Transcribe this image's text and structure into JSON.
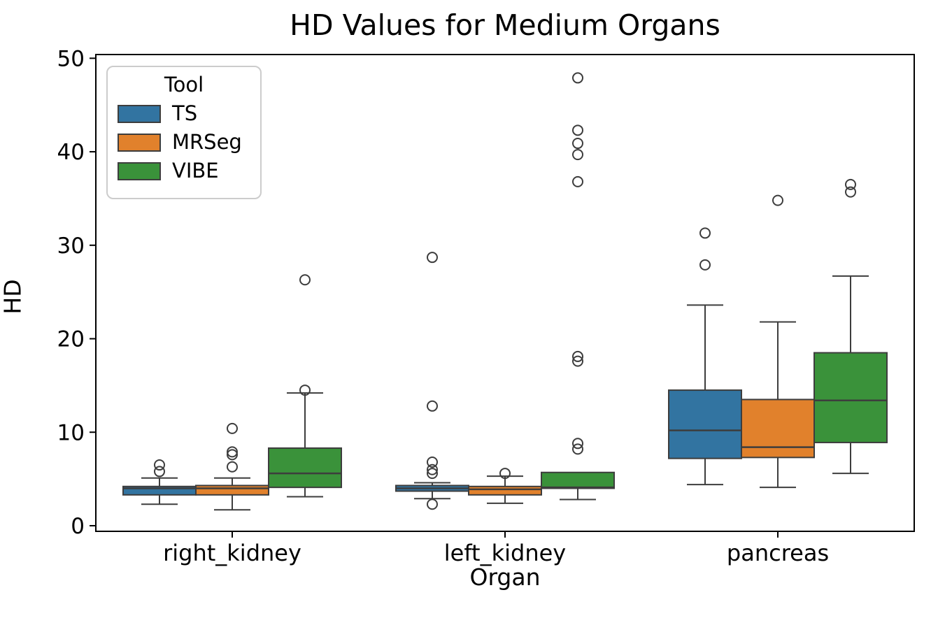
{
  "chart_data": {
    "type": "boxplot",
    "title": "HD Values for Medium Organs",
    "xlabel": "Organ",
    "ylabel": "HD",
    "legend_title": "Tool",
    "legend_position": "upper left",
    "grid": false,
    "ylim": [
      -0.6,
      50.4
    ],
    "yticks": [
      0,
      10,
      20,
      30,
      40,
      50
    ],
    "categories": [
      "right_kidney",
      "left_kidney",
      "pancreas"
    ],
    "series": [
      {
        "name": "TS",
        "color": "#3274a1",
        "boxes": [
          {
            "whislo": 2.3,
            "q1": 3.3,
            "med": 4.0,
            "q3": 4.2,
            "whishi": 5.1,
            "fliers": [
              5.8,
              6.5
            ]
          },
          {
            "whislo": 2.9,
            "q1": 3.7,
            "med": 4.0,
            "q3": 4.3,
            "whishi": 4.6,
            "fliers": [
              2.3,
              5.6,
              6.0,
              6.8,
              12.8,
              28.7
            ]
          },
          {
            "whislo": 4.4,
            "q1": 7.2,
            "med": 10.2,
            "q3": 14.5,
            "whishi": 23.6,
            "fliers": [
              27.9,
              31.3
            ]
          }
        ]
      },
      {
        "name": "MRSeg",
        "color": "#e1812c",
        "boxes": [
          {
            "whislo": 1.7,
            "q1": 3.3,
            "med": 4.0,
            "q3": 4.3,
            "whishi": 5.1,
            "fliers": [
              6.3,
              7.6,
              7.9,
              10.4
            ]
          },
          {
            "whislo": 2.4,
            "q1": 3.3,
            "med": 3.9,
            "q3": 4.2,
            "whishi": 5.3,
            "fliers": [
              5.6
            ]
          },
          {
            "whislo": 4.1,
            "q1": 7.3,
            "med": 8.4,
            "q3": 13.5,
            "whishi": 21.8,
            "fliers": [
              34.8
            ]
          }
        ]
      },
      {
        "name": "VIBE",
        "color": "#3a923a",
        "boxes": [
          {
            "whislo": 3.1,
            "q1": 4.1,
            "med": 5.6,
            "q3": 8.3,
            "whishi": 14.2,
            "fliers": [
              14.5,
              26.3
            ]
          },
          {
            "whislo": 2.8,
            "q1": 4.0,
            "med": 4.1,
            "q3": 5.7,
            "whishi": 5.7,
            "fliers": [
              8.2,
              8.8,
              17.6,
              18.1,
              36.8,
              39.7,
              40.9,
              42.3,
              47.9
            ]
          },
          {
            "whislo": 5.6,
            "q1": 8.9,
            "med": 13.4,
            "q3": 18.5,
            "whishi": 26.7,
            "fliers": [
              35.7,
              36.5
            ]
          }
        ]
      }
    ],
    "style": {
      "edge_color": "#3d3d3d",
      "spine_color": "#000000",
      "flier_marker": "open-circle"
    }
  }
}
